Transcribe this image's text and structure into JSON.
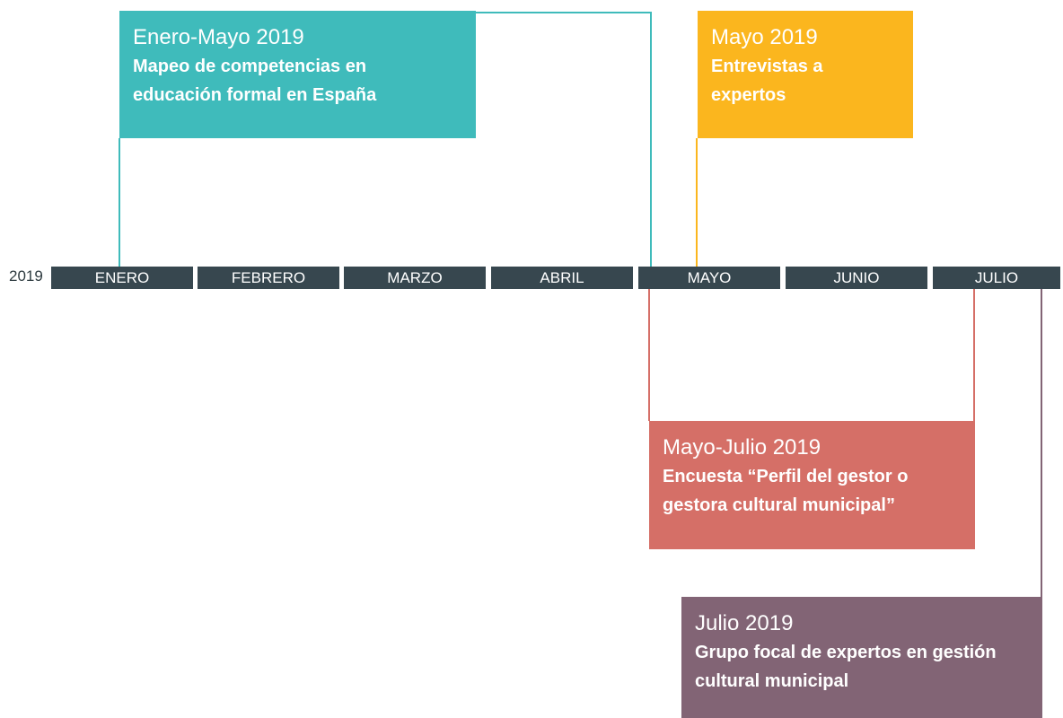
{
  "year": "2019",
  "months": [
    "ENERO",
    "FEBRERO",
    "MARZO",
    "ABRIL",
    "MAYO",
    "JUNIO",
    "JULIO"
  ],
  "events": [
    {
      "date": "Enero-Mayo 2019",
      "title": "Mapeo de competencias en educación formal en España"
    },
    {
      "date": "Mayo 2019",
      "title": "Entrevistas a expertos"
    },
    {
      "date": "Mayo-Julio 2019",
      "title": "Encuesta “Perfil del gestor o gestora cultural municipal”"
    },
    {
      "date": "Julio 2019",
      "title": "Grupo focal de expertos en gestión cultural municipal"
    }
  ]
}
